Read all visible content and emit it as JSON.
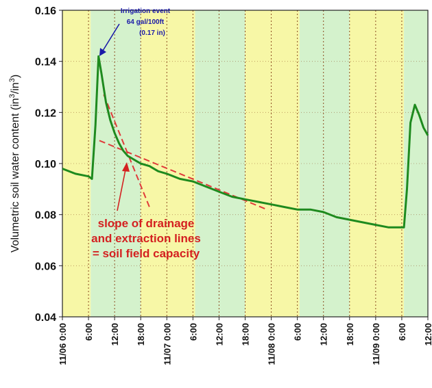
{
  "chart_data": {
    "type": "line",
    "title": "",
    "xlabel": "",
    "ylabel": "Volumetric soil water content (in³/in³)",
    "ylabel_main": "Volumetric soil water content (in",
    "ylabel_sup1": "3",
    "ylabel_mid": "/in",
    "ylabel_sup2": "3",
    "ylabel_end": ")",
    "ylim": [
      0.04,
      0.16
    ],
    "yticks": [
      "0.04",
      "0.06",
      "0.08",
      "0.10",
      "0.12",
      "0.14",
      "0.16"
    ],
    "xlim": [
      "11/06 0:00",
      "11/09 12:00"
    ],
    "xticks": [
      "11/06 0:00",
      "6:00",
      "12:00",
      "18:00",
      "11/07 0:00",
      "6:00",
      "12:00",
      "18:00",
      "11/08 0:00",
      "6:00",
      "12:00",
      "18:00",
      "11/09 0:00",
      "6:00",
      "12:00"
    ],
    "grid": true,
    "background_bands": [
      {
        "from_hour": 0,
        "to_hour": 6.5,
        "color": "#f7f7a6"
      },
      {
        "from_hour": 6.5,
        "to_hour": 18,
        "color": "#d4f2cc"
      },
      {
        "from_hour": 18,
        "to_hour": 30.5,
        "color": "#f7f7a6"
      },
      {
        "from_hour": 30.5,
        "to_hour": 42,
        "color": "#d4f2cc"
      },
      {
        "from_hour": 42,
        "to_hour": 54.5,
        "color": "#f7f7a6"
      },
      {
        "from_hour": 54.5,
        "to_hour": 66,
        "color": "#d4f2cc"
      },
      {
        "from_hour": 66,
        "to_hour": 78.5,
        "color": "#f7f7a6"
      },
      {
        "from_hour": 78.5,
        "to_hour": 84,
        "color": "#d4f2cc"
      }
    ],
    "series": [
      {
        "color": "#1e8a1e",
        "x_hours": [
          0,
          3,
          6,
          6.8,
          7.6,
          8.3,
          9,
          10,
          11,
          12,
          13,
          14,
          15,
          16,
          17,
          18,
          20,
          22,
          24,
          27,
          30,
          33,
          36,
          39,
          42,
          45,
          48,
          51,
          54,
          57,
          60,
          63,
          66,
          69,
          72,
          75,
          78,
          78.5,
          79.2,
          80,
          81,
          82,
          83,
          84
        ],
        "values": [
          0.098,
          0.096,
          0.095,
          0.094,
          0.115,
          0.142,
          0.135,
          0.124,
          0.117,
          0.112,
          0.108,
          0.105,
          0.103,
          0.102,
          0.101,
          0.1,
          0.099,
          0.097,
          0.096,
          0.094,
          0.093,
          0.091,
          0.089,
          0.087,
          0.086,
          0.085,
          0.084,
          0.083,
          0.082,
          0.082,
          0.081,
          0.079,
          0.078,
          0.077,
          0.076,
          0.075,
          0.075,
          0.075,
          0.09,
          0.116,
          0.123,
          0.119,
          0.114,
          0.111
        ]
      }
    ],
    "reference_lines": [
      {
        "color": "#e03a3a",
        "style": "dashed",
        "x_hours": [
          9.5,
          20
        ],
        "values": [
          0.127,
          0.083
        ]
      },
      {
        "color": "#e03a3a",
        "style": "dashed",
        "x_hours": [
          8.5,
          47
        ],
        "values": [
          0.109,
          0.082
        ]
      }
    ],
    "annotations": [
      {
        "lines": [
          "Irrigation event",
          "64 gal/100ft",
          "(0.17 in)"
        ],
        "color": "#1a1aa8",
        "arrow_to_hour": 8.2,
        "arrow_to_value": 0.142
      },
      {
        "lines": [
          "slope of drainage",
          "and extraction lines",
          "= soil field capacity"
        ],
        "color": "#d42020",
        "arrow_to_hour": 15.5,
        "arrow_to_value": 0.103
      }
    ]
  }
}
